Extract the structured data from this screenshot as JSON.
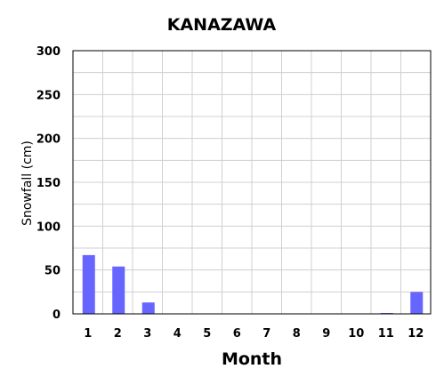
{
  "chart_data": {
    "type": "bar",
    "title": "KANAZAWA",
    "xlabel": "Month",
    "ylabel": "Snowfall (cm)",
    "categories": [
      "1",
      "2",
      "3",
      "4",
      "5",
      "6",
      "7",
      "8",
      "9",
      "10",
      "11",
      "12"
    ],
    "values": [
      67,
      54,
      13,
      0,
      0,
      0,
      0,
      0,
      0,
      0,
      1,
      25
    ],
    "ylim": [
      0,
      300
    ],
    "yticks": [
      0,
      50,
      100,
      150,
      200,
      250,
      300
    ],
    "grid": true,
    "bar_color": "#6666ff"
  }
}
